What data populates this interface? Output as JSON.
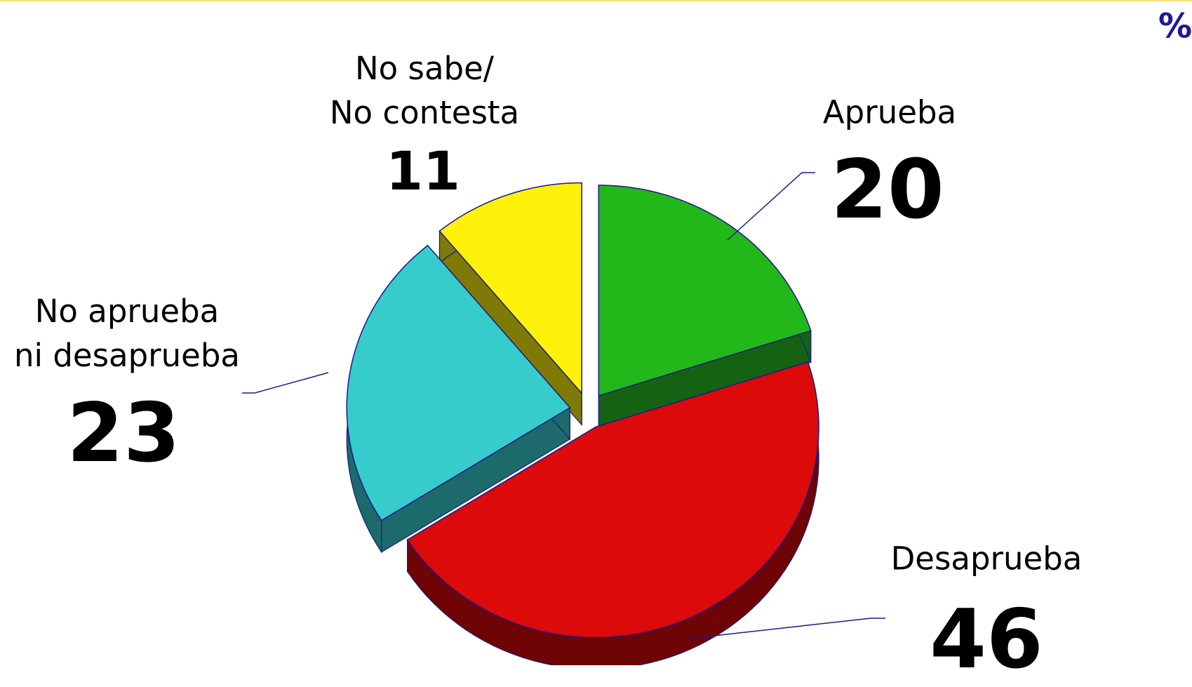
{
  "chart_data": {
    "type": "pie",
    "unit_label": "%",
    "categories": [
      "Aprueba",
      "Desaprueba",
      "No aprueba\nni desaprueba",
      "No sabe/\nNo contesta"
    ],
    "values": [
      20,
      46,
      23,
      11
    ],
    "colors": [
      "#22b81a",
      "#dd0a0a",
      "#36cccc",
      "#fff20a"
    ],
    "side_colors": [
      "#156312",
      "#6e0404",
      "#1d6a6a",
      "#7f7a05"
    ]
  }
}
